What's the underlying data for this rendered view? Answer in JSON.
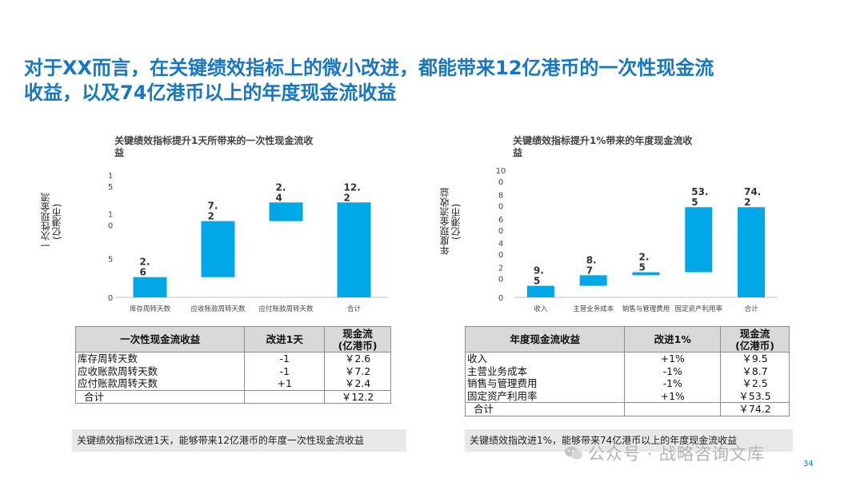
{
  "title_lines": [
    "对于XX而言，在关键绩效指标上的微小改进，都能带来12亿港币的一次性现金流",
    "收益，以及74亿港币以上的年度现金流收益"
  ],
  "left_chart": {
    "title_lines": [
      "关键绩效指标提升1天所带来的一次性现金流收",
      "益"
    ],
    "ylabel_lines": [
      "一次性现金流",
      "(亿港币)"
    ],
    "y_tick_labels": [
      {
        "value": 0,
        "lines": [
          "0"
        ]
      },
      {
        "value": 5,
        "lines": [
          "5"
        ]
      },
      {
        "value": 10,
        "lines": [
          "1",
          "0"
        ]
      },
      {
        "value": 15,
        "lines": [
          "1",
          "5"
        ]
      }
    ]
  },
  "right_chart": {
    "title_lines": [
      "关键绩效指标提升1%带来的年度现金流收",
      "益"
    ],
    "ylabel_lines": [
      "年度现金流收益",
      "(亿港币)"
    ],
    "y_tick_labels": [
      {
        "value": 0,
        "lines": [
          "0"
        ]
      },
      {
        "value": 20,
        "lines": [
          "2",
          "0"
        ]
      },
      {
        "value": 40,
        "lines": [
          "4",
          "0"
        ]
      },
      {
        "value": 60,
        "lines": [
          "6",
          "0"
        ]
      },
      {
        "value": 80,
        "lines": [
          "8",
          "0"
        ]
      },
      {
        "value": 100,
        "lines": [
          "10",
          "0"
        ]
      }
    ]
  },
  "chart_data": [
    {
      "type": "bar",
      "subtype": "waterfall",
      "title": "关键绩效指标提升1天所带来的一次性现金流收益",
      "ylabel": "一次性现金流(亿港币)",
      "ylim": [
        0,
        15
      ],
      "categories": [
        "库存周转天数",
        "应收账款周转天数",
        "应付账款周转天数",
        "合计"
      ],
      "values": [
        2.6,
        7.2,
        2.4,
        12.2
      ],
      "bar_start": [
        0,
        2.6,
        9.8,
        0
      ],
      "data_labels": [
        [
          "2.",
          "6"
        ],
        [
          "7.",
          "2"
        ],
        [
          "2.",
          "4"
        ],
        [
          "12.",
          "2"
        ]
      ],
      "color": "#00a8e8"
    },
    {
      "type": "bar",
      "subtype": "waterfall",
      "title": "关键绩效指标提升1%带来的年度现金流收益",
      "ylabel": "年度现金流收益(亿港币)",
      "ylim": [
        0,
        100
      ],
      "categories": [
        "收入",
        "主营业务成本",
        "销售与管理费用",
        "固定资产利用率",
        "合计"
      ],
      "values": [
        9.5,
        8.7,
        2.5,
        53.5,
        74.2
      ],
      "bar_start": [
        0,
        9.5,
        18.2,
        20.7,
        0
      ],
      "data_labels": [
        [
          "9.",
          "5"
        ],
        [
          "8.",
          "7"
        ],
        [
          "2.",
          "5"
        ],
        [
          "53.",
          "5"
        ],
        [
          "74.",
          "2"
        ]
      ],
      "color": "#00a8e8"
    }
  ],
  "left_table": {
    "headers": [
      "一次性现金流收益",
      "改进1天",
      "现金流\n(亿港币)"
    ],
    "rows": [
      [
        "库存周转天数",
        "-1",
        "￥2.6"
      ],
      [
        "应收账款周转天数",
        "-1",
        "￥7.2"
      ],
      [
        "应付账款周转天数",
        "+1",
        "￥2.4"
      ]
    ],
    "total": [
      "合计",
      "",
      "￥12.2"
    ]
  },
  "right_table": {
    "headers": [
      "年度现金流收益",
      "改进1%",
      "现金流\n(亿港币)"
    ],
    "rows": [
      [
        "收入",
        "+1%",
        "￥9.5"
      ],
      [
        "主营业务成本",
        "-1%",
        "￥8.7"
      ],
      [
        "销售与管理费用",
        "-1%",
        "￥2.5"
      ],
      [
        "固定资产利用率",
        "+1%",
        "￥53.5"
      ]
    ],
    "total": [
      "合计",
      "",
      "￥74.2"
    ]
  },
  "left_note": "关键绩效指标改进1天，能够带来12亿港币的年度一次性现金流收益",
  "right_note": "关键绩效指改进1%，能够带来74亿港币以上的年度现金流收益",
  "watermark": "公众号 · 战略咨询文库",
  "page_number": "34"
}
